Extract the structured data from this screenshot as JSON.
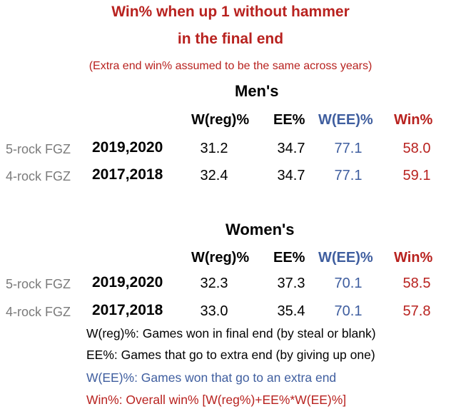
{
  "title_line1": "Win% when up 1 without hammer",
  "title_line2": "in the final end",
  "subtitle": "(Extra end win% assumed to be the same across years)",
  "headers": {
    "wreg": "W(reg)%",
    "ee": "EE%",
    "wee": "W(EE)%",
    "win": "Win%"
  },
  "colors": {
    "red": "#b8221f",
    "blue": "#3f5e9f",
    "gray": "#7b7b7b"
  },
  "mens": {
    "title": "Men's",
    "rows": [
      {
        "label": "5-rock FGZ",
        "years": "2019,2020",
        "wreg": "31.2",
        "ee": "34.7",
        "wee": "77.1",
        "win": "58.0"
      },
      {
        "label": "4-rock FGZ",
        "years": "2017,2018",
        "wreg": "32.4",
        "ee": "34.7",
        "wee": "77.1",
        "win": "59.1"
      }
    ]
  },
  "womens": {
    "title": "Women's",
    "rows": [
      {
        "label": "5-rock FGZ",
        "years": "2019,2020",
        "wreg": "32.3",
        "ee": "37.3",
        "wee": "70.1",
        "win": "58.5"
      },
      {
        "label": "4-rock FGZ",
        "years": "2017,2018",
        "wreg": "33.0",
        "ee": "35.4",
        "wee": "70.1",
        "win": "57.8"
      }
    ]
  },
  "notes": [
    "W(reg)%: Games won in final end (by steal or blank)",
    "EE%: Games that go to extra end (by giving up one)",
    "W(EE)%: Games won that go to an extra end",
    "Win%: Overall win% [W(reg%)+EE%*W(EE)%]"
  ]
}
